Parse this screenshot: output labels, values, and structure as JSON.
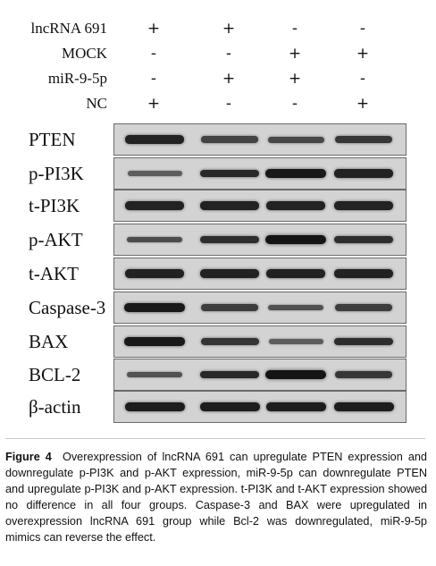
{
  "conditions": [
    {
      "label": "lncRNA 691",
      "marks": [
        "+",
        "+",
        "-",
        "-"
      ]
    },
    {
      "label": "MOCK",
      "marks": [
        "-",
        "-",
        "+",
        "+"
      ]
    },
    {
      "label": "miR-9-5p",
      "marks": [
        "-",
        "+",
        "+",
        "-"
      ]
    },
    {
      "label": "NC",
      "marks": [
        "+",
        "-",
        "-",
        "+"
      ]
    }
  ],
  "blots": [
    {
      "label": "PTEN",
      "intensity": [
        0.85,
        0.55,
        0.5,
        0.65
      ]
    },
    {
      "label": "p-PI3K",
      "intensity": [
        0.3,
        0.8,
        0.95,
        0.85
      ]
    },
    {
      "label": "t-PI3K",
      "intensity": [
        0.85,
        0.85,
        0.85,
        0.85
      ]
    },
    {
      "label": "p-AKT",
      "intensity": [
        0.45,
        0.75,
        1.0,
        0.75
      ]
    },
    {
      "label": "t-AKT",
      "intensity": [
        0.85,
        0.85,
        0.85,
        0.85
      ]
    },
    {
      "label": "Caspase-3",
      "intensity": [
        0.95,
        0.6,
        0.4,
        0.6
      ]
    },
    {
      "label": "BAX",
      "intensity": [
        0.95,
        0.7,
        0.3,
        0.75
      ]
    },
    {
      "label": "BCL-2",
      "intensity": [
        0.4,
        0.8,
        1.0,
        0.65
      ]
    },
    {
      "label": "β-actin",
      "intensity": [
        0.9,
        0.9,
        0.9,
        0.9
      ]
    }
  ],
  "caption": {
    "label": "Figure 4",
    "text": "Overexpression of lncRNA 691 can upregulate PTEN expression and downregulate p-PI3K and p-AKT expression, miR-9-5p can downregulate PTEN and upregulate p-PI3K and p-AKT expression. t-PI3K and t-AKT expression showed no difference in all four groups. Caspase-3 and BAX were upregulated in overexpression lncRNA 691 group while Bcl-2 was downregulated, miR-9-5p mimics can reverse the effect."
  }
}
